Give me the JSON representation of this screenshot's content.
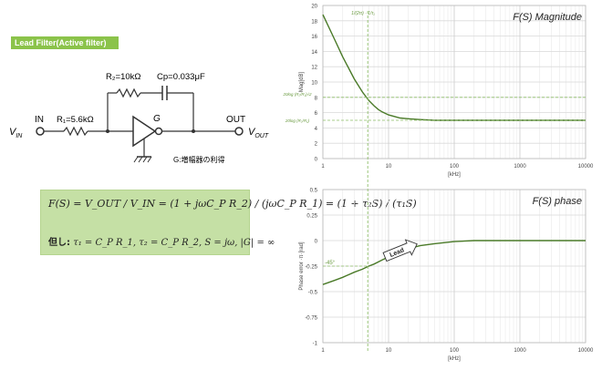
{
  "badge": "Lead Filter(Active filter)",
  "circuit": {
    "in_label": "IN",
    "out_label": "OUT",
    "vin": "V",
    "vin_sub": "IN",
    "vout": "V",
    "vout_sub": "OUT",
    "r1": "R₁=5.6kΩ",
    "r2": "R₂=10kΩ",
    "cp": "Cp=0.033μF",
    "g": "G",
    "g_note": "G:増幅器の利得"
  },
  "formula": {
    "line1": "F(S) = V_OUT / V_IN = (1 + jωC_P R_2) / (jωC_P R_1) = (1 + τ₂S) / (τ₁S)",
    "line2_prefix": "但し:",
    "line2": "τ₁ = C_P R_1, τ₂ = C_P R_2, S = jω, |G| = ∞"
  },
  "chart_data": [
    {
      "type": "line",
      "title": "F(S) Magnitude",
      "xlabel": "[kHz]",
      "ylabel": "Mag[dB]",
      "xscale": "log",
      "xlim": [
        1,
        10000
      ],
      "ylim": [
        0,
        20
      ],
      "xticks": [
        "1",
        "10",
        "100",
        "1000",
        "10000"
      ],
      "yticks": [
        "0",
        "2",
        "4",
        "6",
        "8",
        "10",
        "12",
        "14",
        "16",
        "18",
        "20"
      ],
      "grid": true,
      "color": "#4a7a28",
      "x": [
        1,
        1.5,
        2,
        3,
        4,
        5,
        6,
        7,
        8,
        10,
        15,
        20,
        30,
        50,
        100,
        200,
        1000,
        10000
      ],
      "y": [
        18.8,
        15.6,
        13.3,
        10.4,
        8.7,
        7.6,
        6.9,
        6.4,
        6.1,
        5.7,
        5.3,
        5.2,
        5.1,
        5.0,
        5.0,
        5.0,
        5.0,
        5.0
      ],
      "annotations": [
        {
          "text": "1/(2π) · 1/τ₁",
          "x": 4.82,
          "y": 19.5
        },
        {
          "text": "20log (R₂/R₁)√2",
          "x": 1,
          "y": 8.0
        },
        {
          "text": "20log (R₂/R₁)",
          "x": 1,
          "y": 5.0
        }
      ]
    },
    {
      "type": "line",
      "title": "F(S) phase",
      "xlabel": "[kHz]",
      "ylabel": "Phase error ·π·[rad]",
      "xscale": "log",
      "xlim": [
        1,
        10000
      ],
      "ylim": [
        -1,
        0.5
      ],
      "xticks": [
        "1",
        "10",
        "100",
        "1000",
        "10000"
      ],
      "yticks": [
        "-1",
        "-0.75",
        "-0.5",
        "-0.25",
        "0",
        "0.25",
        "0.5"
      ],
      "grid": true,
      "color": "#4a7a28",
      "x": [
        1,
        1.5,
        2,
        3,
        4,
        5,
        6,
        8,
        10,
        15,
        20,
        30,
        50,
        100,
        200,
        1000,
        10000
      ],
      "y": [
        -0.43,
        -0.39,
        -0.36,
        -0.31,
        -0.28,
        -0.25,
        -0.23,
        -0.19,
        -0.16,
        -0.11,
        -0.08,
        -0.05,
        -0.03,
        -0.01,
        0.0,
        0.0,
        0.0
      ],
      "annotations": [
        {
          "text": "-45°",
          "x": 1,
          "y": -0.25
        },
        {
          "text": "Lead",
          "x": 15,
          "y": -0.1
        }
      ]
    }
  ]
}
